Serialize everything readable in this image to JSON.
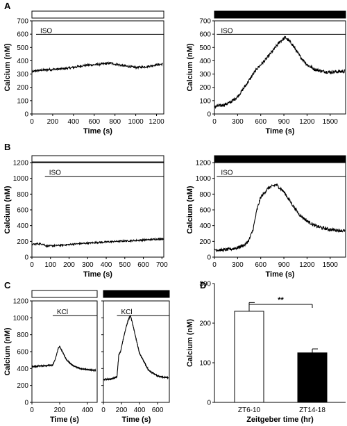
{
  "panel_labels": [
    "A",
    "B",
    "C",
    "D"
  ],
  "chart_data": [
    {
      "id": "A1",
      "type": "line",
      "panel": "A",
      "condition_bar": "white",
      "annotation": "ISO",
      "annotation_line_from": 40,
      "ylabel": "Calcium (nM)",
      "xlabel": "Time (s)",
      "xlim": [
        0,
        1270
      ],
      "ylim": [
        0,
        700
      ],
      "xticks": [
        0,
        200,
        400,
        600,
        800,
        1000,
        1200
      ],
      "yticks": [
        0,
        100,
        200,
        300,
        400,
        500,
        600,
        700
      ],
      "x": [
        0,
        40,
        100,
        200,
        300,
        400,
        500,
        600,
        700,
        760,
        800,
        900,
        1000,
        1100,
        1200,
        1260
      ],
      "y": [
        315,
        325,
        330,
        335,
        340,
        350,
        365,
        370,
        378,
        382,
        375,
        360,
        350,
        355,
        370,
        375
      ],
      "noise": 8
    },
    {
      "id": "A2",
      "type": "line",
      "panel": "A",
      "condition_bar": "black",
      "annotation": "ISO",
      "annotation_line_from": 30,
      "ylabel": "Calcium (nM)",
      "xlabel": "Time (s)",
      "xlim": [
        0,
        1700
      ],
      "ylim": [
        0,
        700
      ],
      "xticks": [
        0,
        300,
        600,
        900,
        1200,
        1500
      ],
      "yticks": [
        0,
        100,
        200,
        300,
        400,
        500,
        600,
        700
      ],
      "x": [
        0,
        100,
        200,
        300,
        400,
        480,
        550,
        650,
        750,
        850,
        920,
        1000,
        1100,
        1200,
        1300,
        1400,
        1500,
        1600,
        1690
      ],
      "y": [
        55,
        65,
        85,
        130,
        210,
        280,
        340,
        400,
        470,
        545,
        575,
        530,
        440,
        370,
        335,
        320,
        315,
        318,
        320
      ],
      "noise": 12
    },
    {
      "id": "B1",
      "type": "line",
      "panel": "B",
      "condition_bar": "white",
      "annotation": "ISO",
      "annotation_line_from": 70,
      "ylabel": "Calcium (nM)",
      "xlabel": "Time (s)",
      "xlim": [
        0,
        710
      ],
      "ylim": [
        0,
        1200
      ],
      "xticks": [
        0,
        100,
        200,
        300,
        400,
        500,
        600,
        700
      ],
      "yticks": [
        0,
        200,
        400,
        600,
        800,
        1000,
        1200
      ],
      "x": [
        0,
        30,
        60,
        80,
        150,
        250,
        350,
        450,
        550,
        650,
        710
      ],
      "y": [
        160,
        170,
        165,
        140,
        150,
        170,
        185,
        200,
        210,
        225,
        235
      ],
      "noise": 10
    },
    {
      "id": "B2",
      "type": "line",
      "panel": "B",
      "condition_bar": "black",
      "annotation": "ISO",
      "annotation_line_from": 30,
      "ylabel": "Calcium (nM)",
      "xlabel": "Time (s)",
      "xlim": [
        0,
        1700
      ],
      "ylim": [
        0,
        1200
      ],
      "xticks": [
        0,
        300,
        600,
        900,
        1200,
        1500
      ],
      "yticks": [
        0,
        200,
        400,
        600,
        800,
        1000,
        1200
      ],
      "x": [
        0,
        100,
        200,
        300,
        400,
        450,
        500,
        550,
        600,
        700,
        800,
        900,
        1000,
        1100,
        1200,
        1300,
        1400,
        1500,
        1600,
        1690
      ],
      "y": [
        95,
        90,
        100,
        120,
        160,
        220,
        350,
        600,
        760,
        880,
        920,
        830,
        680,
        540,
        460,
        400,
        370,
        350,
        340,
        335
      ],
      "noise": 20
    },
    {
      "id": "C1",
      "type": "line",
      "panel": "C",
      "condition_bar": "white",
      "annotation": "KCl",
      "annotation_line_from": 150,
      "ylabel": "Calcium (nM)",
      "xlabel": "Time (s)",
      "xlim": [
        0,
        470
      ],
      "ylim": [
        0,
        1200
      ],
      "xticks": [
        0,
        200,
        400
      ],
      "yticks": [
        0,
        200,
        400,
        600,
        800,
        1000,
        1200
      ],
      "x": [
        0,
        50,
        100,
        150,
        170,
        190,
        200,
        220,
        250,
        300,
        350,
        400,
        460
      ],
      "y": [
        420,
        430,
        435,
        440,
        520,
        640,
        660,
        600,
        500,
        430,
        400,
        385,
        380
      ],
      "noise": 6
    },
    {
      "id": "C2",
      "type": "line",
      "panel": "C",
      "condition_bar": "black",
      "annotation": "KCl",
      "annotation_line_from": 150,
      "xlabel": "Time (s)",
      "xlim": [
        0,
        730
      ],
      "ylim": [
        0,
        1200
      ],
      "xticks": [
        0,
        200,
        400,
        600
      ],
      "yticks": [
        0,
        200,
        400,
        600,
        800,
        1000,
        1200
      ],
      "x": [
        0,
        80,
        150,
        170,
        190,
        230,
        270,
        300,
        340,
        400,
        500,
        600,
        720
      ],
      "y": [
        270,
        275,
        300,
        560,
        600,
        800,
        960,
        1030,
        850,
        580,
        380,
        310,
        290
      ],
      "noise": 8
    },
    {
      "id": "D",
      "type": "bar",
      "panel": "D",
      "ylabel": "Calcium (nM)",
      "xlabel": "Zeitgeber time (hr)",
      "categories": [
        "ZT6-10",
        "ZT14-18"
      ],
      "values": [
        230,
        125
      ],
      "errors": [
        22,
        10
      ],
      "bar_colors": [
        "#ffffff",
        "#000000"
      ],
      "significance": "**",
      "ylim": [
        0,
        300
      ],
      "yticks": [
        0,
        100,
        200,
        300
      ]
    }
  ]
}
